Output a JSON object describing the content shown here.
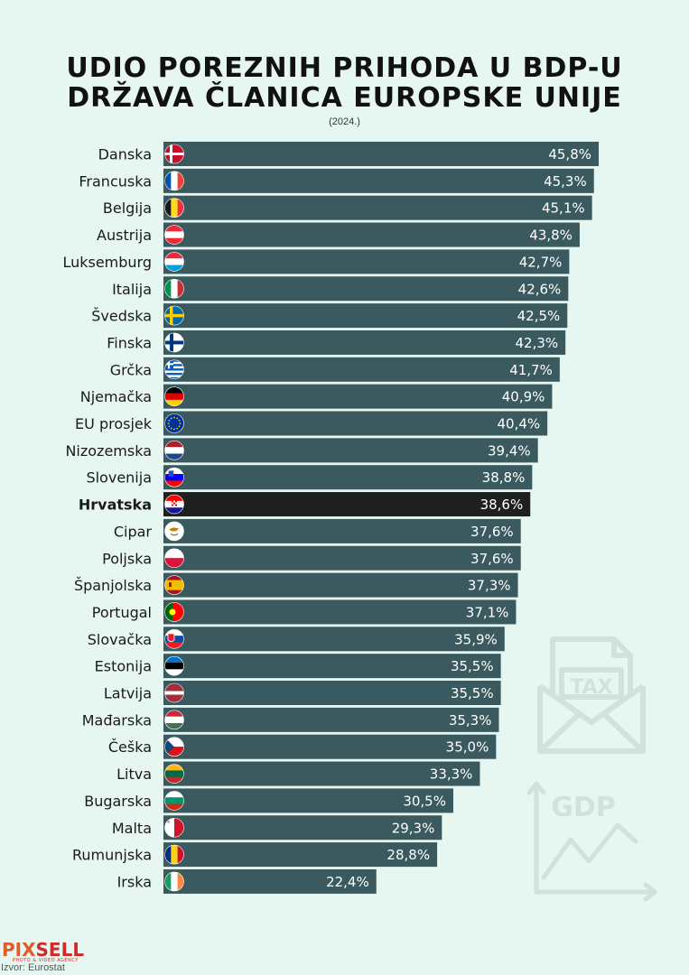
{
  "header": {
    "title_line1": "UDIO POREZNIH PRIHODA U BDP-U",
    "title_line2": "DRŽAVA ČLANICA EUROPSKE UNIJE",
    "subtitle": "(2024.)"
  },
  "decorations": {
    "tax_label": "TAX",
    "gdp_label": "GDP"
  },
  "footer": {
    "logo_part1": "PIX",
    "logo_part2": "SELL",
    "tagline": "PHOTO & VIDEO AGENCY",
    "source": "Izvor: Eurostat"
  },
  "colors": {
    "bar": "#3a5a5f",
    "highlight_bar": "#1f1f1f",
    "background": "#e6f6f1"
  },
  "chart_data": {
    "type": "bar",
    "orientation": "horizontal",
    "title": "UDIO POREZNIH PRIHODA U BDP-U DRŽAVA ČLANICA EUROPSKE UNIJE",
    "subtitle": "(2024.)",
    "xlabel": "",
    "ylabel": "",
    "xlim": [
      0,
      45.8
    ],
    "highlight": "Hrvatska",
    "categories": [
      "Danska",
      "Francuska",
      "Belgija",
      "Austrija",
      "Luksemburg",
      "Italija",
      "Švedska",
      "Finska",
      "Grčka",
      "Njemačka",
      "EU prosjek",
      "Nizozemska",
      "Slovenija",
      "Hrvatska",
      "Cipar",
      "Poljska",
      "Španjolska",
      "Portugal",
      "Slovačka",
      "Estonija",
      "Latvija",
      "Mađarska",
      "Češka",
      "Litva",
      "Bugarska",
      "Malta",
      "Rumunjska",
      "Irska"
    ],
    "values": [
      45.8,
      45.3,
      45.1,
      43.8,
      42.7,
      42.6,
      42.5,
      42.3,
      41.7,
      40.9,
      40.4,
      39.4,
      38.8,
      38.6,
      37.6,
      37.6,
      37.3,
      37.1,
      35.9,
      35.5,
      35.5,
      35.3,
      35.0,
      33.3,
      30.5,
      29.3,
      28.8,
      22.4
    ],
    "value_labels": [
      "45,8%",
      "45,3%",
      "45,1%",
      "43,8%",
      "42,7%",
      "42,6%",
      "42,5%",
      "42,3%",
      "41,7%",
      "40,9%",
      "40,4%",
      "39,4%",
      "38,8%",
      "38,6%",
      "37,6%",
      "37,6%",
      "37,3%",
      "37,1%",
      "35,9%",
      "35,5%",
      "35,5%",
      "35,3%",
      "35,0%",
      "33,3%",
      "30,5%",
      "29,3%",
      "28,8%",
      "22,4%"
    ],
    "flags": [
      "denmark-flag-icon",
      "france-flag-icon",
      "belgium-flag-icon",
      "austria-flag-icon",
      "luxembourg-flag-icon",
      "italy-flag-icon",
      "sweden-flag-icon",
      "finland-flag-icon",
      "greece-flag-icon",
      "germany-flag-icon",
      "eu-flag-icon",
      "netherlands-flag-icon",
      "slovenia-flag-icon",
      "croatia-flag-icon",
      "cyprus-flag-icon",
      "poland-flag-icon",
      "spain-flag-icon",
      "portugal-flag-icon",
      "slovakia-flag-icon",
      "estonia-flag-icon",
      "latvia-flag-icon",
      "hungary-flag-icon",
      "czechia-flag-icon",
      "lithuania-flag-icon",
      "bulgaria-flag-icon",
      "malta-flag-icon",
      "romania-flag-icon",
      "ireland-flag-icon"
    ]
  }
}
